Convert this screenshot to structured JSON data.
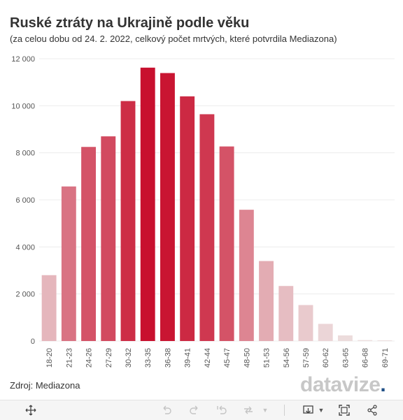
{
  "header": {
    "title": "Ruské ztráty na Ukrajině podle věku",
    "subtitle": "(za celou dobu od 24. 2. 2022, celkový počet mrtvých, které potvrdila Mediazona)"
  },
  "footer": {
    "source": "Zdroj: Mediazona",
    "logo_main": "datavize",
    "logo_accent": ".",
    "logo_tail": ""
  },
  "toolbar": {
    "icons": [
      "pan-icon",
      "undo-icon",
      "redo-icon",
      "revert-icon",
      "forward-icon",
      "download-icon",
      "fullscreen-icon",
      "share-icon"
    ]
  },
  "colors": {
    "bar_min": "#ecdede",
    "bar_max": "#c8102e",
    "grid": "#ececec",
    "text": "#333333",
    "logo_gray": "#c7c7c7",
    "logo_accent": "#1f4f86"
  },
  "chart_data": {
    "type": "bar",
    "title": "Ruské ztráty na Ukrajině podle věku",
    "subtitle": "(za celou dobu od 24. 2. 2022, celkový počet mrtvých, které potvrdila Mediazona)",
    "categories": [
      "18-20",
      "21-23",
      "24-26",
      "27-29",
      "30-32",
      "33-35",
      "36-38",
      "39-41",
      "42-44",
      "45-47",
      "48-50",
      "51-53",
      "54-56",
      "57-59",
      "60-62",
      "63-65",
      "66-68",
      "69-71"
    ],
    "values": [
      2800,
      6570,
      8250,
      8700,
      10200,
      11620,
      11390,
      10400,
      9640,
      8270,
      5580,
      3400,
      2340,
      1530,
      730,
      240,
      40,
      10
    ],
    "ylim": [
      0,
      12000
    ],
    "yticks": [
      0,
      2000,
      4000,
      6000,
      8000,
      10000,
      12000
    ],
    "ytick_labels": [
      "0",
      "2 000",
      "4 000",
      "6 000",
      "8 000",
      "10 000",
      "12 000"
    ],
    "xlabel": "",
    "ylabel": "",
    "grid": true,
    "legend": "none"
  }
}
